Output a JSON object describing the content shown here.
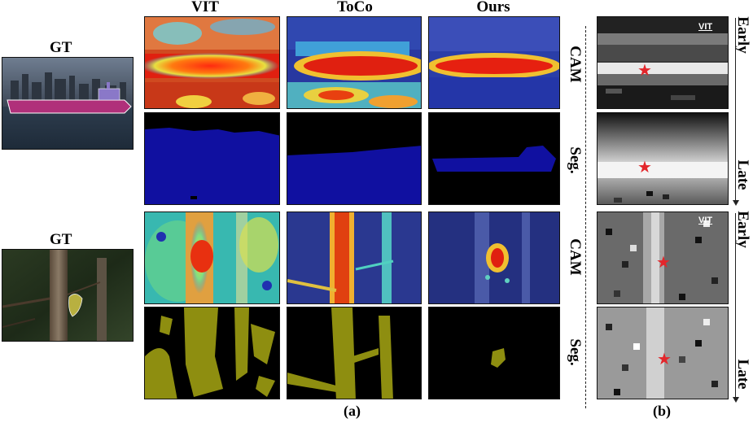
{
  "columns": {
    "vit": "VIT",
    "toco": "ToCo",
    "ours": "Ours"
  },
  "gt_label": "GT",
  "row_labels": {
    "cam": "CAM",
    "seg": "Seg."
  },
  "side_labels": {
    "early": "Early",
    "late": "Late",
    "vit_tag": "VIT"
  },
  "captions": {
    "a": "(a)",
    "b": "(b)"
  },
  "colors": {
    "star": "#e3262b",
    "seg_ship": "#1010a0",
    "seg_bird": "#8e8e10",
    "background": "#000000"
  }
}
